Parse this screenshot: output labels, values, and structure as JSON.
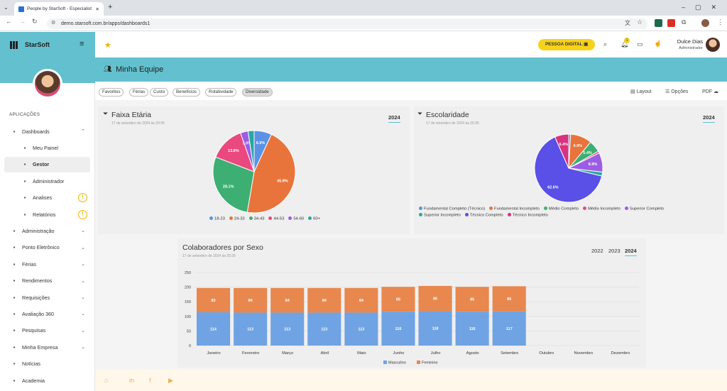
{
  "browser": {
    "tab_title": "People by StarSoft - Especialist",
    "url": "demo.starsoft.com.br/apps/dashboards1"
  },
  "sidebar": {
    "brand": "StarSoft",
    "section": "APLICAÇÕES",
    "items": [
      {
        "label": "Dashboards",
        "icon": "grid-icon",
        "chev": "⌃"
      },
      {
        "label": "Meu Painel",
        "icon": "person-icon",
        "sub": true
      },
      {
        "label": "Gestor",
        "icon": "people-icon",
        "sub": true,
        "active": true
      },
      {
        "label": "Administrador",
        "icon": "building-icon",
        "sub": true
      },
      {
        "label": "Analises",
        "icon": "table-icon",
        "sub": true,
        "warn": "!"
      },
      {
        "label": "Relatórios",
        "icon": "report-icon",
        "sub": true,
        "warn": "!"
      },
      {
        "label": "Administração",
        "icon": "admin-icon",
        "chev": "⌄"
      },
      {
        "label": "Ponto Eletrônico",
        "icon": "clock-icon",
        "chev": "⌄"
      },
      {
        "label": "Férias",
        "icon": "beach-icon",
        "chev": "⌄"
      },
      {
        "label": "Rendimentos",
        "icon": "money-icon",
        "chev": "⌄"
      },
      {
        "label": "Requisições",
        "icon": "request-icon",
        "chev": "⌄"
      },
      {
        "label": "Avaliação 360",
        "icon": "eval-icon",
        "chev": "⌄"
      },
      {
        "label": "Pesquisas",
        "icon": "survey-icon",
        "chev": "⌄"
      },
      {
        "label": "Minha Empresa",
        "icon": "company-icon",
        "chev": "⌄"
      },
      {
        "label": "Notícias",
        "icon": "news-icon"
      },
      {
        "label": "Academia",
        "icon": "academy-icon"
      }
    ]
  },
  "header": {
    "pessoa_digital": "PESSOA DIGITAL",
    "notif_count": "1",
    "user_name": "Dulce Dias",
    "user_role": "Administrador"
  },
  "page": {
    "title": "Minha Equipe",
    "tabs": [
      "Favoritos",
      "Férias",
      "Custo",
      "Benefícios",
      "Rotatividade",
      "Diversidade"
    ],
    "selected_tab": "Diversidade",
    "actions": {
      "layout": "Layout",
      "opcoes": "Opções",
      "pdf": "PDF"
    }
  },
  "cards": {
    "faixa": {
      "title": "Faixa Etária",
      "date": "17 de setembro de 2024 às 20:35",
      "year": "2024"
    },
    "escolaridade": {
      "title": "Escolaridade",
      "date": "17 de setembro de 2024 às 20:35",
      "year": "2024"
    },
    "sexo": {
      "title": "Colaboradores por Sexo",
      "date": "17 de setembro de 2024 às 20:35",
      "years": [
        "2022",
        "2023",
        "2024"
      ]
    }
  },
  "colors": {
    "accent": "#63c0cf",
    "yellow": "#f7d21b"
  },
  "chart_data": [
    {
      "type": "pie",
      "title": "Faixa Etária",
      "labels": [
        "18-23",
        "24-33",
        "34-43",
        "44-53",
        "54-60",
        "60+"
      ],
      "values": [
        6.9,
        45.8,
        28.1,
        13.8,
        3.0,
        2.4
      ],
      "colors": [
        "#5b92e5",
        "#e8743b",
        "#3daf73",
        "#e9497f",
        "#9b5de5",
        "#2aa7a0"
      ],
      "slice_labels": [
        "6.9%",
        "45.8%",
        "28.1%",
        "13.8%",
        "3.0%",
        ""
      ]
    },
    {
      "type": "pie",
      "title": "Escolaridade",
      "labels": [
        "Fundamental Completo (Técnico)",
        "Fundamental Incompleto",
        "Médio Completo",
        "Médio Incompleto",
        "Superior Completo",
        "Superior Incompleto",
        "Técnico Completo",
        "Técnico Incompleto"
      ],
      "values": [
        0.9,
        9.9,
        5.4,
        0.9,
        8.9,
        1.8,
        62.6,
        6.4
      ],
      "colors": [
        "#5b92e5",
        "#e8743b",
        "#3daf73",
        "#e9497f",
        "#9b5de5",
        "#2aa7a0",
        "#5a4fe6",
        "#d9327e"
      ],
      "slice_labels": [
        "",
        "9.9%",
        "5.4%",
        "",
        "8.9%",
        "",
        "62.6%",
        "6.4%"
      ]
    },
    {
      "type": "bar",
      "title": "Colaboradores por Sexo",
      "categories": [
        "Janeiro",
        "Fevereiro",
        "Março",
        "Abril",
        "Maio",
        "Junho",
        "Julho",
        "Agosto",
        "Setembro",
        "Outubro",
        "Novembro",
        "Dezembro"
      ],
      "series": [
        {
          "name": "Masculino",
          "values": [
            114,
            113,
            113,
            113,
            113,
            116,
            118,
            116,
            117,
            null,
            null,
            null
          ],
          "color": "#6fa3e3"
        },
        {
          "name": "Feminino",
          "values": [
            83,
            84,
            84,
            84,
            84,
            85,
            86,
            85,
            86,
            null,
            null,
            null
          ],
          "color": "#e8874e"
        }
      ],
      "ylim": [
        0,
        250
      ],
      "yticks": [
        0,
        50,
        100,
        150,
        200,
        250
      ],
      "stacked": true
    }
  ]
}
